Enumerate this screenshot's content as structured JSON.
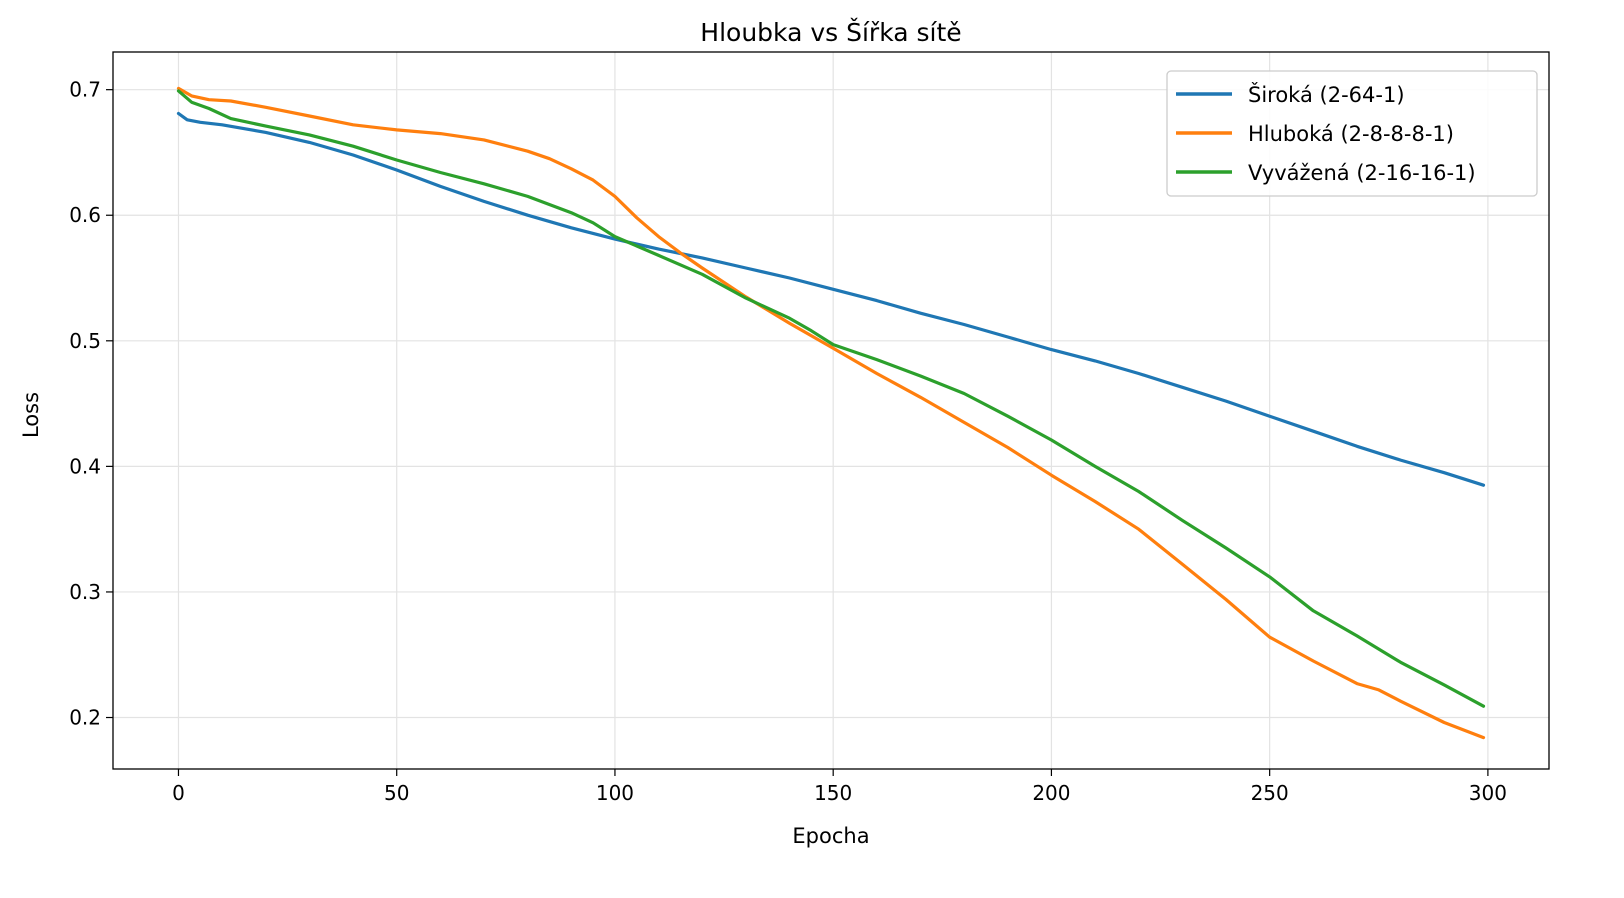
{
  "chart_data": {
    "type": "line",
    "title": "Hloubka vs Šířka sítě",
    "xlabel": "Epocha",
    "ylabel": "Loss",
    "xlim": [
      -15,
      314
    ],
    "ylim": [
      0.159,
      0.73
    ],
    "xticks": [
      0,
      50,
      100,
      150,
      200,
      250,
      300
    ],
    "xtick_labels": [
      "0",
      "50",
      "100",
      "150",
      "200",
      "250",
      "300"
    ],
    "yticks": [
      0.2,
      0.3,
      0.4,
      0.5,
      0.6,
      0.7
    ],
    "ytick_labels": [
      "0.2",
      "0.3",
      "0.4",
      "0.5",
      "0.6",
      "0.7"
    ],
    "grid": true,
    "legend_position": "top-right",
    "series": [
      {
        "name": "Široká (2-64-1)",
        "color": "#1f77b4",
        "x": [
          0,
          2,
          5,
          10,
          20,
          30,
          40,
          50,
          60,
          70,
          80,
          90,
          100,
          110,
          120,
          130,
          140,
          150,
          160,
          170,
          180,
          190,
          200,
          210,
          220,
          230,
          240,
          250,
          260,
          270,
          280,
          290,
          299
        ],
        "y": [
          0.681,
          0.676,
          0.674,
          0.672,
          0.666,
          0.658,
          0.648,
          0.636,
          0.623,
          0.611,
          0.6,
          0.59,
          0.581,
          0.573,
          0.566,
          0.558,
          0.55,
          0.541,
          0.532,
          0.522,
          0.513,
          0.503,
          0.493,
          0.484,
          0.474,
          0.463,
          0.452,
          0.44,
          0.428,
          0.416,
          0.405,
          0.395,
          0.385
        ]
      },
      {
        "name": "Hluboká (2-8-8-8-1)",
        "color": "#ff7f0e",
        "x": [
          0,
          3,
          7,
          12,
          20,
          30,
          40,
          50,
          60,
          70,
          80,
          85,
          90,
          95,
          100,
          105,
          110,
          115,
          120,
          130,
          140,
          150,
          160,
          170,
          180,
          190,
          200,
          210,
          220,
          230,
          240,
          250,
          260,
          270,
          275,
          280,
          290,
          299
        ],
        "y": [
          0.701,
          0.695,
          0.692,
          0.691,
          0.686,
          0.679,
          0.672,
          0.668,
          0.665,
          0.66,
          0.651,
          0.645,
          0.637,
          0.628,
          0.615,
          0.598,
          0.583,
          0.57,
          0.558,
          0.535,
          0.514,
          0.494,
          0.474,
          0.455,
          0.435,
          0.415,
          0.393,
          0.372,
          0.35,
          0.322,
          0.294,
          0.264,
          0.245,
          0.227,
          0.222,
          0.213,
          0.196,
          0.184
        ]
      },
      {
        "name": "Vyvážená (2-16-16-1)",
        "color": "#2ca02c",
        "x": [
          0,
          3,
          7,
          12,
          20,
          30,
          40,
          50,
          60,
          70,
          80,
          90,
          95,
          100,
          110,
          120,
          130,
          140,
          145,
          150,
          160,
          170,
          180,
          190,
          200,
          210,
          220,
          230,
          240,
          250,
          260,
          270,
          280,
          290,
          299
        ],
        "y": [
          0.699,
          0.69,
          0.685,
          0.677,
          0.671,
          0.664,
          0.655,
          0.644,
          0.634,
          0.625,
          0.615,
          0.602,
          0.594,
          0.583,
          0.568,
          0.553,
          0.534,
          0.518,
          0.508,
          0.497,
          0.485,
          0.472,
          0.458,
          0.44,
          0.421,
          0.4,
          0.38,
          0.357,
          0.335,
          0.312,
          0.285,
          0.265,
          0.244,
          0.226,
          0.209
        ]
      }
    ]
  }
}
